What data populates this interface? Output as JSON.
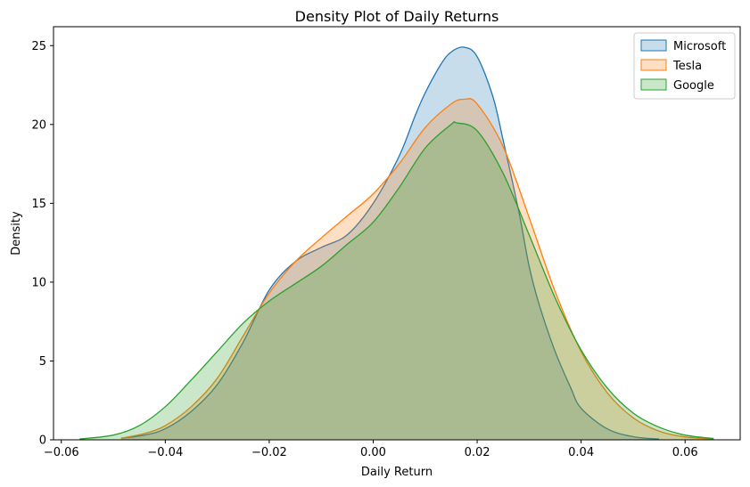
{
  "chart_data": {
    "type": "area",
    "title": "Density Plot of Daily Returns",
    "xlabel": "Daily Return",
    "ylabel": "Density",
    "xlim": [
      -0.0615,
      0.0706
    ],
    "ylim": [
      0,
      26.2
    ],
    "x_ticks": [
      {
        "value": -0.06,
        "label": "−0.06"
      },
      {
        "value": -0.04,
        "label": "−0.04"
      },
      {
        "value": -0.02,
        "label": "−0.02"
      },
      {
        "value": 0.0,
        "label": "0.00"
      },
      {
        "value": 0.02,
        "label": "0.02"
      },
      {
        "value": 0.04,
        "label": "0.04"
      },
      {
        "value": 0.06,
        "label": "0.06"
      }
    ],
    "y_ticks": [
      {
        "value": 0,
        "label": "0"
      },
      {
        "value": 5,
        "label": "5"
      },
      {
        "value": 10,
        "label": "10"
      },
      {
        "value": 15,
        "label": "15"
      },
      {
        "value": 20,
        "label": "20"
      },
      {
        "value": 25,
        "label": "25"
      }
    ],
    "grid": false,
    "legend_position": "top-right",
    "series": [
      {
        "name": "Microsoft",
        "color": "#1f77b4",
        "x": [
          -0.0485,
          -0.044,
          -0.04,
          -0.035,
          -0.03,
          -0.025,
          -0.02,
          -0.015,
          -0.01,
          -0.005,
          0.0,
          0.005,
          0.008,
          0.01,
          0.013,
          0.015,
          0.0175,
          0.02,
          0.023,
          0.025,
          0.028,
          0.03,
          0.032,
          0.035,
          0.038,
          0.04,
          0.045,
          0.05,
          0.055
        ],
        "y": [
          0.1,
          0.3,
          0.7,
          1.8,
          3.5,
          6.2,
          9.5,
          11.3,
          12.2,
          13.0,
          15.0,
          18.0,
          20.5,
          22.0,
          23.8,
          24.6,
          24.9,
          24.3,
          21.8,
          19.0,
          14.5,
          11.0,
          8.5,
          5.6,
          3.3,
          2.0,
          0.7,
          0.2,
          0.05
        ]
      },
      {
        "name": "Tesla",
        "color": "#ff7f0e",
        "x": [
          -0.0485,
          -0.044,
          -0.04,
          -0.035,
          -0.03,
          -0.025,
          -0.02,
          -0.015,
          -0.01,
          -0.005,
          0.0,
          0.005,
          0.01,
          0.015,
          0.0175,
          0.02,
          0.025,
          0.03,
          0.035,
          0.04,
          0.045,
          0.05,
          0.055,
          0.06,
          0.0655
        ],
        "y": [
          0.1,
          0.4,
          0.9,
          2.1,
          3.9,
          6.6,
          9.3,
          11.3,
          12.8,
          14.2,
          15.6,
          17.5,
          19.8,
          21.3,
          21.6,
          21.3,
          18.6,
          14.1,
          9.4,
          5.6,
          3.0,
          1.4,
          0.55,
          0.18,
          0.05
        ]
      },
      {
        "name": "Google",
        "color": "#2ca02c",
        "x": [
          -0.0565,
          -0.05,
          -0.045,
          -0.04,
          -0.035,
          -0.03,
          -0.025,
          -0.02,
          -0.015,
          -0.01,
          -0.005,
          0.0,
          0.005,
          0.01,
          0.015,
          0.016,
          0.02,
          0.025,
          0.03,
          0.035,
          0.04,
          0.045,
          0.05,
          0.055,
          0.06,
          0.0655
        ],
        "y": [
          0.05,
          0.3,
          0.9,
          2.1,
          3.8,
          5.6,
          7.4,
          8.8,
          9.9,
          11.0,
          12.4,
          13.8,
          16.0,
          18.5,
          20.0,
          20.1,
          19.6,
          16.9,
          13.0,
          9.0,
          5.7,
          3.3,
          1.7,
          0.8,
          0.3,
          0.08
        ]
      }
    ]
  }
}
